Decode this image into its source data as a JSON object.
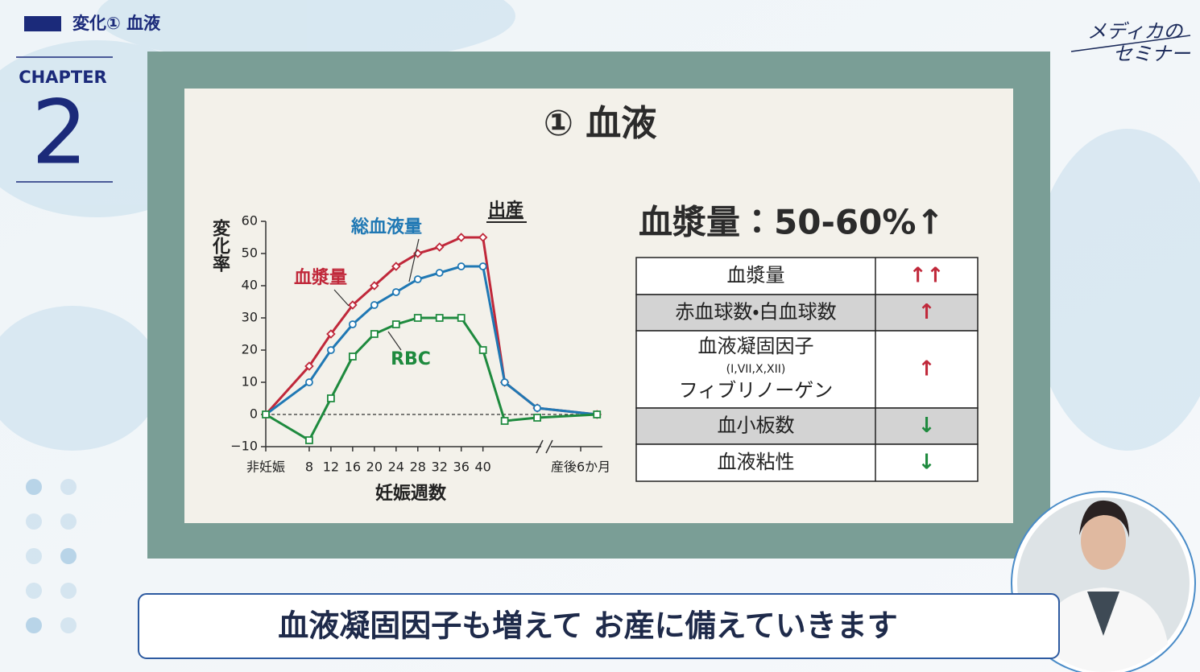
{
  "header": {
    "section": "変化① 血液",
    "chapter_label": "CHAPTER",
    "chapter_number": "2"
  },
  "logo": {
    "line1": "メディカの",
    "line2": "セミナー"
  },
  "slide": {
    "title": "① 血液",
    "heading": "血漿量：50-60%↑",
    "chart_data": {
      "type": "line",
      "ylabel": "変化率",
      "xlabel": "妊娠週数",
      "annotation": "出産",
      "x": [
        0,
        8,
        12,
        16,
        20,
        24,
        28,
        32,
        36,
        40,
        44,
        50,
        61
      ],
      "xlim": [
        0,
        62
      ],
      "xticks": [
        {
          "value": 0,
          "label": "非妊娠"
        },
        8,
        12,
        16,
        20,
        24,
        28,
        32,
        36,
        40,
        {
          "value": 58,
          "label": "産後6か月"
        }
      ],
      "ylim": [
        -10,
        60
      ],
      "yticks": [
        {
          "value": -10,
          "label": "−10"
        },
        0,
        10,
        20,
        30,
        40,
        50,
        60
      ],
      "series": [
        {
          "name": "血漿量",
          "color": "#c0283a",
          "marker": "diamond",
          "values": [
            0,
            15,
            25,
            34,
            40,
            46,
            50,
            52,
            55,
            55,
            10,
            2,
            0
          ]
        },
        {
          "name": "総血液量",
          "color": "#1f78b4",
          "marker": "circle",
          "values": [
            0,
            10,
            20,
            28,
            34,
            38,
            42,
            44,
            46,
            46,
            10,
            2,
            0
          ]
        },
        {
          "name": "RBC",
          "color": "#1e8a3e",
          "marker": "square",
          "values": [
            0,
            -8,
            5,
            18,
            25,
            28,
            30,
            30,
            30,
            20,
            -2,
            -1,
            0
          ]
        }
      ]
    },
    "table": {
      "rows": [
        [
          "血漿量",
          "↑↑"
        ],
        [
          "赤血球数・白血球数",
          "↑"
        ],
        [
          [
            "血液凝固因子",
            "(I,VII,X,XII)",
            "フィブリノーゲン"
          ],
          "↑"
        ],
        [
          "血小板数",
          "↓"
        ],
        [
          "血液粘性",
          "↓"
        ]
      ]
    }
  },
  "caption": "血液凝固因子も増えて お産に備えていきます"
}
